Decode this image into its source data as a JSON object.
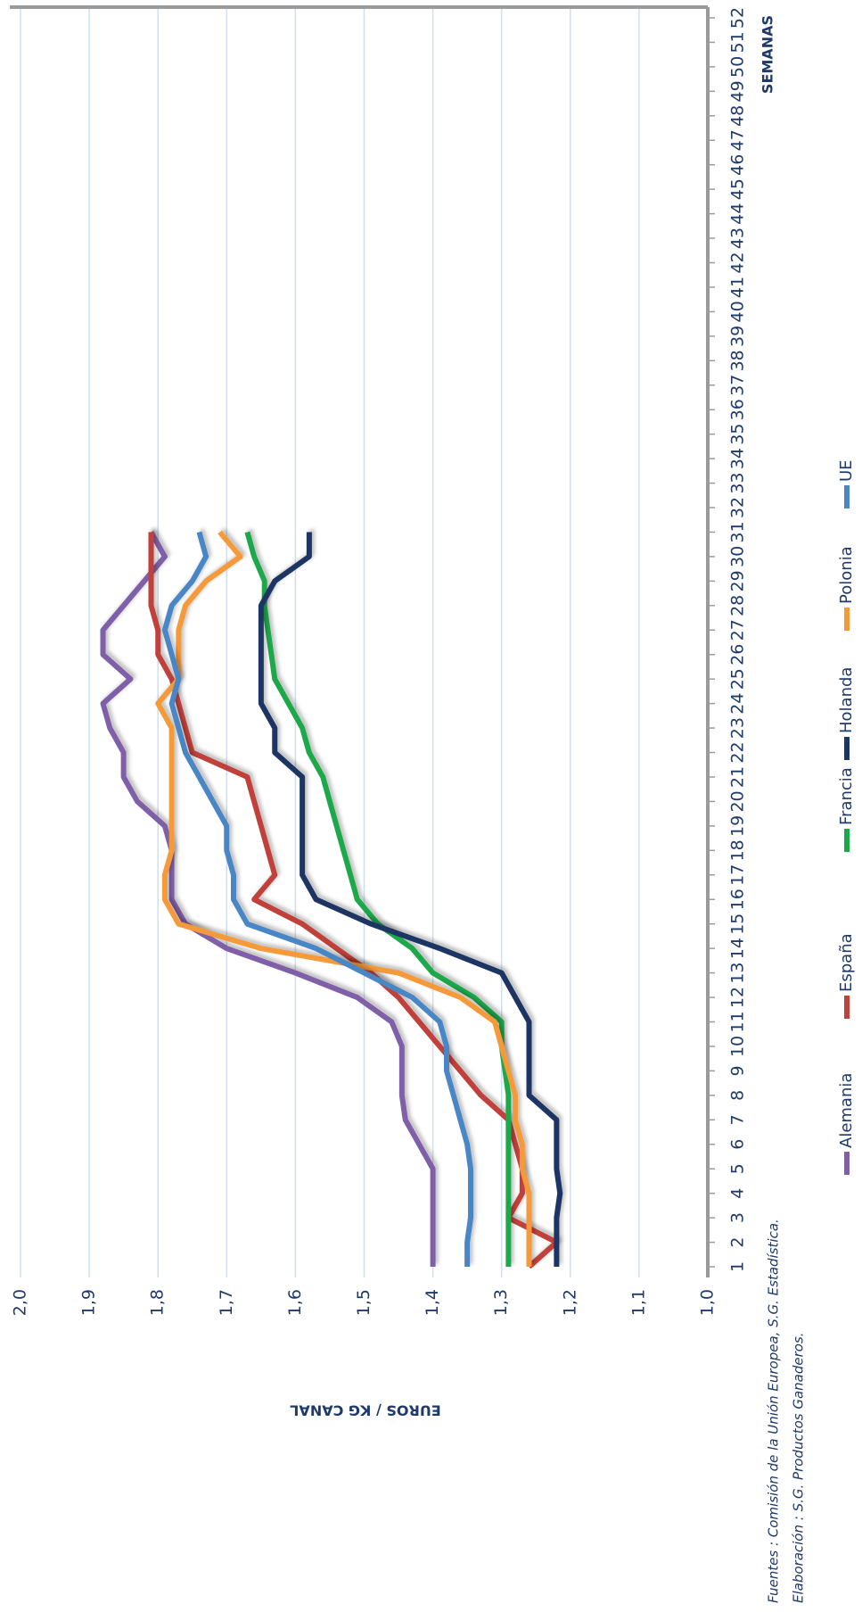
{
  "chart_data": {
    "type": "line",
    "y_label": "EUROS / KG CANAL",
    "x_label": "SEMANAS",
    "source": "Fuentes : Comisión de la Unión Europea, S.G. Estadística.",
    "credit": "Elaboración : S.G. Productos Ganaderos.",
    "categories": [
      1,
      2,
      3,
      4,
      5,
      6,
      7,
      8,
      9,
      10,
      11,
      12,
      13,
      14,
      15,
      16,
      17,
      18,
      19,
      20,
      21,
      22,
      23,
      24,
      25,
      26,
      27,
      28,
      29,
      30,
      31,
      32,
      33,
      34,
      35,
      36,
      37,
      38,
      39,
      40,
      41,
      42,
      43,
      44,
      45,
      46,
      47,
      48,
      49,
      50,
      51,
      52
    ],
    "ylim": [
      1.0,
      2.0
    ],
    "yticks": [
      {
        "value": 1.0,
        "label": "1,0"
      },
      {
        "value": 1.1,
        "label": "1,1"
      },
      {
        "value": 1.2,
        "label": "1,2"
      },
      {
        "value": 1.3,
        "label": "1,3"
      },
      {
        "value": 1.4,
        "label": "1,4"
      },
      {
        "value": 1.5,
        "label": "1,5"
      },
      {
        "value": 1.6,
        "label": "1,6"
      },
      {
        "value": 1.7,
        "label": "1,7"
      },
      {
        "value": 1.8,
        "label": "1,8"
      },
      {
        "value": 1.9,
        "label": "1,9"
      },
      {
        "value": 2.0,
        "label": "2,0"
      }
    ],
    "grid": true,
    "series": [
      {
        "name": "Alemania",
        "color": "#7f5fa8",
        "values": [
          1.4,
          1.4,
          1.4,
          1.4,
          1.4,
          1.42,
          1.44,
          1.445,
          1.445,
          1.445,
          1.46,
          1.51,
          1.6,
          1.7,
          1.76,
          1.78,
          1.78,
          1.78,
          1.79,
          1.83,
          1.85,
          1.85,
          1.87,
          1.88,
          1.84,
          1.88,
          1.88,
          1.85,
          1.82,
          1.79,
          1.81,
          null,
          null,
          null,
          null,
          null,
          null,
          null,
          null,
          null,
          null,
          null,
          null,
          null,
          null,
          null,
          null,
          null,
          null,
          null,
          null,
          null
        ]
      },
      {
        "name": "España",
        "color": "#c0403a",
        "values": [
          1.26,
          1.22,
          1.29,
          1.27,
          1.27,
          1.28,
          1.29,
          1.33,
          1.36,
          1.39,
          1.42,
          1.45,
          1.49,
          1.54,
          1.59,
          1.66,
          1.63,
          1.64,
          1.65,
          1.66,
          1.67,
          1.75,
          1.76,
          1.77,
          1.78,
          1.8,
          1.8,
          1.81,
          1.81,
          1.81,
          1.81,
          null,
          null,
          null,
          null,
          null,
          null,
          null,
          null,
          null,
          null,
          null,
          null,
          null,
          null,
          null,
          null,
          null,
          null,
          null,
          null,
          null
        ]
      },
      {
        "name": "Francia",
        "color": "#1aa84b",
        "values": [
          1.29,
          1.29,
          1.29,
          1.29,
          1.29,
          1.29,
          1.29,
          1.29,
          1.295,
          1.3,
          1.3,
          1.34,
          1.4,
          1.43,
          1.48,
          1.51,
          1.52,
          1.53,
          1.54,
          1.55,
          1.56,
          1.58,
          1.59,
          1.61,
          1.63,
          1.635,
          1.64,
          1.645,
          1.645,
          1.66,
          1.67,
          null,
          null,
          null,
          null,
          null,
          null,
          null,
          null,
          null,
          null,
          null,
          null,
          null,
          null,
          null,
          null,
          null,
          null,
          null,
          null,
          null
        ]
      },
      {
        "name": "Holanda",
        "color": "#1b3564",
        "values": [
          1.22,
          1.22,
          1.22,
          1.215,
          1.22,
          1.22,
          1.22,
          1.26,
          1.26,
          1.26,
          1.26,
          1.28,
          1.3,
          1.39,
          1.49,
          1.57,
          1.59,
          1.59,
          1.59,
          1.59,
          1.59,
          1.63,
          1.63,
          1.65,
          1.65,
          1.65,
          1.65,
          1.65,
          1.63,
          1.58,
          1.58,
          null,
          null,
          null,
          null,
          null,
          null,
          null,
          null,
          null,
          null,
          null,
          null,
          null,
          null,
          null,
          null,
          null,
          null,
          null,
          null,
          null
        ]
      },
      {
        "name": "Polonia",
        "color": "#f59a3a",
        "values": [
          1.26,
          1.26,
          1.26,
          1.26,
          1.27,
          1.27,
          1.28,
          1.28,
          1.29,
          1.3,
          1.31,
          1.36,
          1.45,
          1.65,
          1.77,
          1.79,
          1.79,
          1.78,
          1.78,
          1.78,
          1.78,
          1.78,
          1.78,
          1.8,
          1.77,
          1.77,
          1.77,
          1.76,
          1.73,
          1.68,
          1.71,
          null,
          null,
          null,
          null,
          null,
          null,
          null,
          null,
          null,
          null,
          null,
          null,
          null,
          null,
          null,
          null,
          null,
          null,
          null,
          null,
          null
        ]
      },
      {
        "name": "UE",
        "color": "#4a86c5",
        "values": [
          1.35,
          1.35,
          1.345,
          1.345,
          1.345,
          1.35,
          1.36,
          1.37,
          1.38,
          1.38,
          1.39,
          1.43,
          1.5,
          1.57,
          1.67,
          1.69,
          1.69,
          1.7,
          1.7,
          1.72,
          1.74,
          1.76,
          1.77,
          1.78,
          1.77,
          1.78,
          1.79,
          1.78,
          1.75,
          1.73,
          1.74,
          null,
          null,
          null,
          null,
          null,
          null,
          null,
          null,
          null,
          null,
          null,
          null,
          null,
          null,
          null,
          null,
          null,
          null,
          null,
          null,
          null
        ]
      }
    ]
  }
}
